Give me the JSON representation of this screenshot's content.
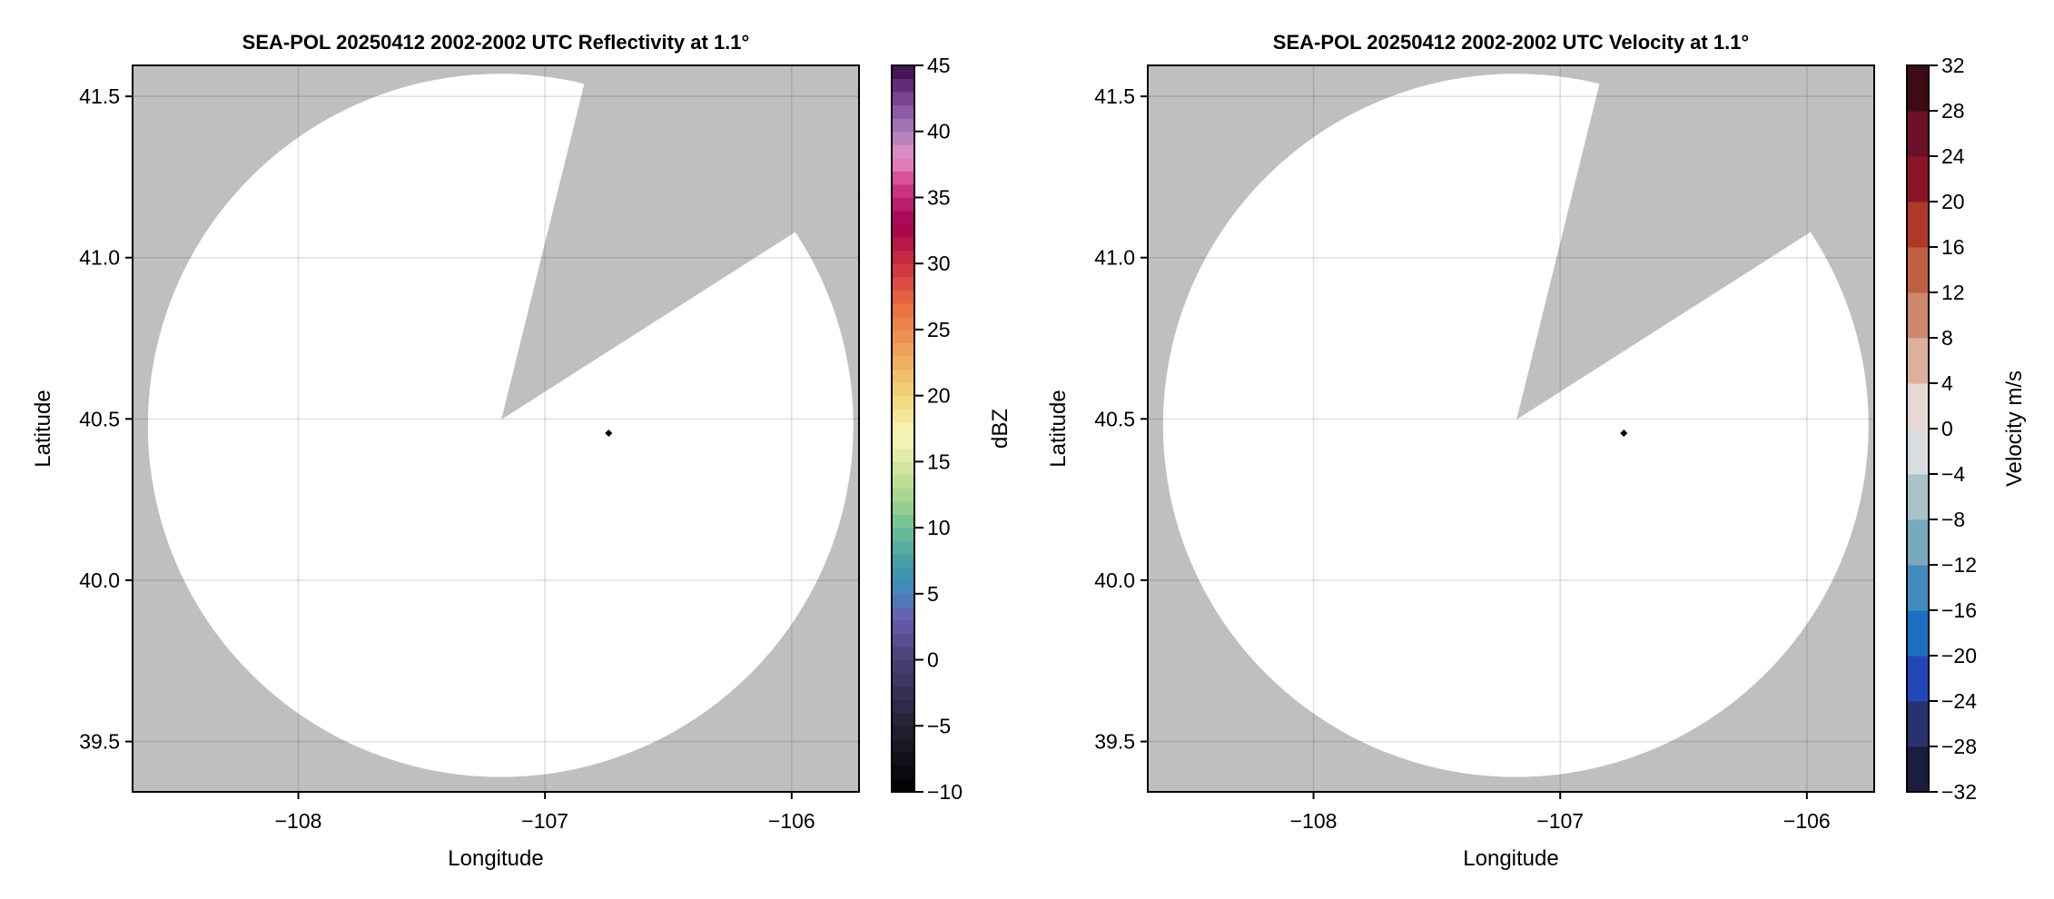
{
  "chart_data": [
    {
      "type": "heatmap",
      "title": "SEA-POL 20250412 2002-2002 UTC Reflectivity at 1.1°",
      "xlabel": "Longitude",
      "ylabel": "Latitude",
      "xlim": [
        -108.672,
        -105.727
      ],
      "ylim": [
        39.344,
        41.596
      ],
      "xticks": [
        -108,
        -107,
        -106
      ],
      "xtick_labels": [
        "−108",
        "−107",
        "−106"
      ],
      "yticks": [
        39.5,
        40.0,
        40.5,
        41.0,
        41.5
      ],
      "ytick_labels": [
        "39.5",
        "40.0",
        "40.5",
        "41.0",
        "41.5"
      ],
      "grid": true,
      "background_color": "#bfbfbf",
      "coverage_color": "#ffffff",
      "coverage": {
        "center": [
          -107.18,
          40.48
        ],
        "radius_lon": 1.43,
        "radius_lat": 1.09,
        "blocked_sector": [
          [
            -107.177,
            40.498
          ],
          [
            -106.845,
            41.526
          ],
          [
            -105.906,
            41.118
          ]
        ]
      },
      "radar_marker": [
        -106.742,
        40.456
      ],
      "colorbar": {
        "label": "dBZ",
        "range": [
          -10,
          45
        ],
        "band_step": 1,
        "ticks": [
          -10,
          -5,
          0,
          5,
          10,
          15,
          20,
          25,
          30,
          35,
          40,
          45
        ],
        "tick_labels": [
          "−10",
          "−5",
          "0",
          "5",
          "10",
          "15",
          "20",
          "25",
          "30",
          "35",
          "40",
          "45"
        ],
        "stops": [
          [
            -10,
            "#000000"
          ],
          [
            -5,
            "#252033"
          ],
          [
            0,
            "#4a3f75"
          ],
          [
            3,
            "#6a5aad"
          ],
          [
            5,
            "#4484c0"
          ],
          [
            7,
            "#3f9aa8"
          ],
          [
            10,
            "#6cbf94"
          ],
          [
            13,
            "#b8da8e"
          ],
          [
            17,
            "#f8f7b8"
          ],
          [
            20,
            "#f0d47a"
          ],
          [
            23,
            "#eda95d"
          ],
          [
            27,
            "#e96a40"
          ],
          [
            30,
            "#cc3040"
          ],
          [
            33,
            "#a3004f"
          ],
          [
            36,
            "#d23c8c"
          ],
          [
            38,
            "#e590c8"
          ],
          [
            40,
            "#a880bb"
          ],
          [
            42,
            "#8850a0"
          ],
          [
            45,
            "#3a0a4a"
          ]
        ]
      }
    },
    {
      "type": "heatmap",
      "title": "SEA-POL 20250412 2002-2002 UTC Velocity at 1.1°",
      "xlabel": "Longitude",
      "ylabel": "Latitude",
      "xlim": [
        -108.672,
        -105.727
      ],
      "ylim": [
        39.344,
        41.596
      ],
      "xticks": [
        -108,
        -107,
        -106
      ],
      "xtick_labels": [
        "−108",
        "−107",
        "−106"
      ],
      "yticks": [
        39.5,
        40.0,
        40.5,
        41.0,
        41.5
      ],
      "ytick_labels": [
        "39.5",
        "40.0",
        "40.5",
        "41.0",
        "41.5"
      ],
      "grid": true,
      "background_color": "#bfbfbf",
      "coverage_color": "#ffffff",
      "coverage": {
        "center": [
          -107.18,
          40.48
        ],
        "radius_lon": 1.43,
        "radius_lat": 1.09,
        "blocked_sector": [
          [
            -107.177,
            40.498
          ],
          [
            -106.845,
            41.526
          ],
          [
            -105.906,
            41.118
          ]
        ]
      },
      "radar_marker": [
        -106.742,
        40.456
      ],
      "colorbar": {
        "label": "Velocity m/s",
        "range": [
          -32,
          32
        ],
        "band_step": 4,
        "ticks": [
          -32,
          -28,
          -24,
          -20,
          -16,
          -12,
          -8,
          -4,
          0,
          4,
          8,
          12,
          16,
          20,
          24,
          28,
          32
        ],
        "tick_labels": [
          "−32",
          "−28",
          "−24",
          "−20",
          "−16",
          "−12",
          "−8",
          "−4",
          "0",
          "4",
          "8",
          "12",
          "16",
          "20",
          "24",
          "28",
          "32"
        ],
        "bands": [
          "#1a1c40",
          "#283270",
          "#2248b8",
          "#1a6fc0",
          "#428bbb",
          "#78a8bd",
          "#a9c1c9",
          "#dadddf",
          "#e8d8d4",
          "#dcaf9f",
          "#cf8870",
          "#c06042",
          "#b03828",
          "#8c1428",
          "#6a1028",
          "#3e0a16"
        ]
      }
    }
  ]
}
